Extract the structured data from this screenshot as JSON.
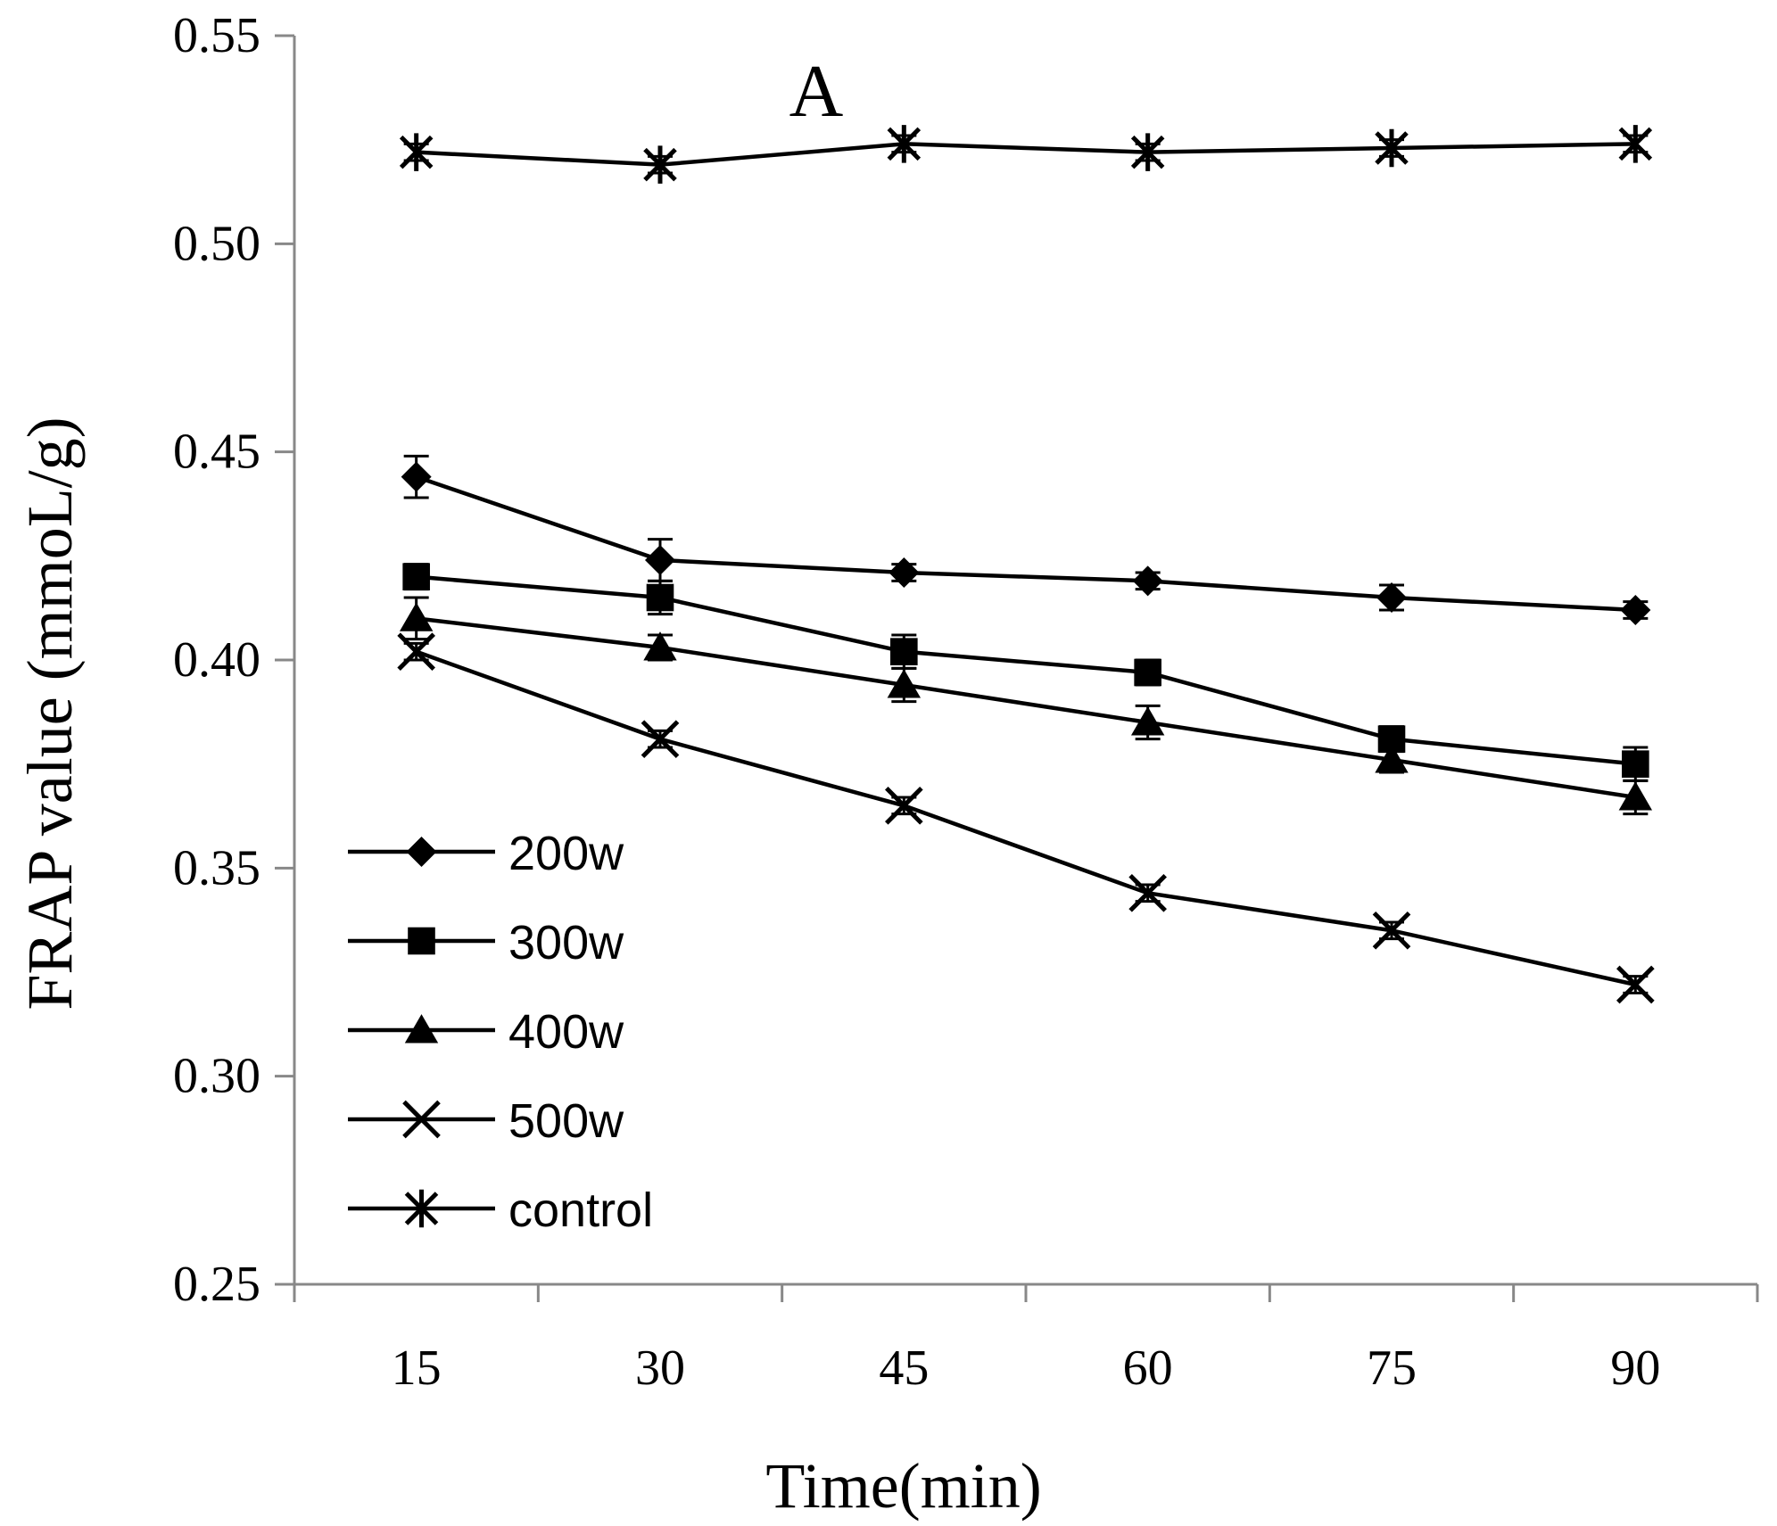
{
  "chart_data": {
    "type": "line",
    "title": "A",
    "xlabel": "Time(min)",
    "ylabel": "FRAP value (mmoL/g)",
    "categories": [
      "15",
      "30",
      "45",
      "60",
      "75",
      "90"
    ],
    "ylim": [
      0.25,
      0.55
    ],
    "yticks": [
      "0.25",
      "0.30",
      "0.35",
      "0.40",
      "0.45",
      "0.50",
      "0.55"
    ],
    "grid": false,
    "legend_position": "bottom-left",
    "series": [
      {
        "name": "200w",
        "marker": "diamond",
        "values": [
          0.444,
          0.424,
          0.421,
          0.419,
          0.415,
          0.412
        ],
        "errors": [
          0.005,
          0.005,
          0.002,
          0.002,
          0.003,
          0.002
        ]
      },
      {
        "name": "300w",
        "marker": "square",
        "values": [
          0.42,
          0.415,
          0.402,
          0.397,
          0.381,
          0.375
        ],
        "errors": [
          0.003,
          0.004,
          0.004,
          0.003,
          0.003,
          0.004
        ]
      },
      {
        "name": "400w",
        "marker": "triangle",
        "values": [
          0.41,
          0.403,
          0.394,
          0.385,
          0.376,
          0.367
        ],
        "errors": [
          0.005,
          0.003,
          0.004,
          0.004,
          0.003,
          0.004
        ]
      },
      {
        "name": "500w",
        "marker": "x",
        "values": [
          0.402,
          0.381,
          0.365,
          0.344,
          0.335,
          0.322
        ],
        "errors": [
          0.002,
          0.002,
          0.002,
          0.002,
          0.002,
          0.002
        ]
      },
      {
        "name": "control",
        "marker": "asterisk",
        "values": [
          0.522,
          0.519,
          0.524,
          0.522,
          0.523,
          0.524
        ],
        "errors": [
          0.002,
          0.002,
          0.002,
          0.002,
          0.002,
          0.002
        ]
      }
    ]
  }
}
